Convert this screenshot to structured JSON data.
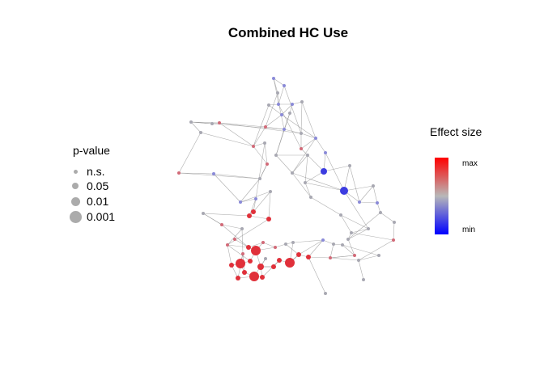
{
  "title": "Combined HC Use",
  "pvalue_legend": {
    "title": "p-value",
    "items": [
      {
        "label": "n.s."
      },
      {
        "label": "0.05"
      },
      {
        "label": "0.01"
      },
      {
        "label": "0.001"
      }
    ]
  },
  "effect_legend": {
    "title": "Effect size",
    "max_label": "max",
    "min_label": "min",
    "colors": {
      "high": "#ff0000",
      "mid": "#b8b8b8",
      "low": "#0000ff"
    }
  },
  "colors": {
    "edge": "#8c8c8c",
    "node_red": "#e0303a",
    "node_pink": "#d26a78",
    "node_grey": "#a8a8b2",
    "node_blue": "#3c3ce0",
    "node_lavender": "#8a8ad8"
  }
}
